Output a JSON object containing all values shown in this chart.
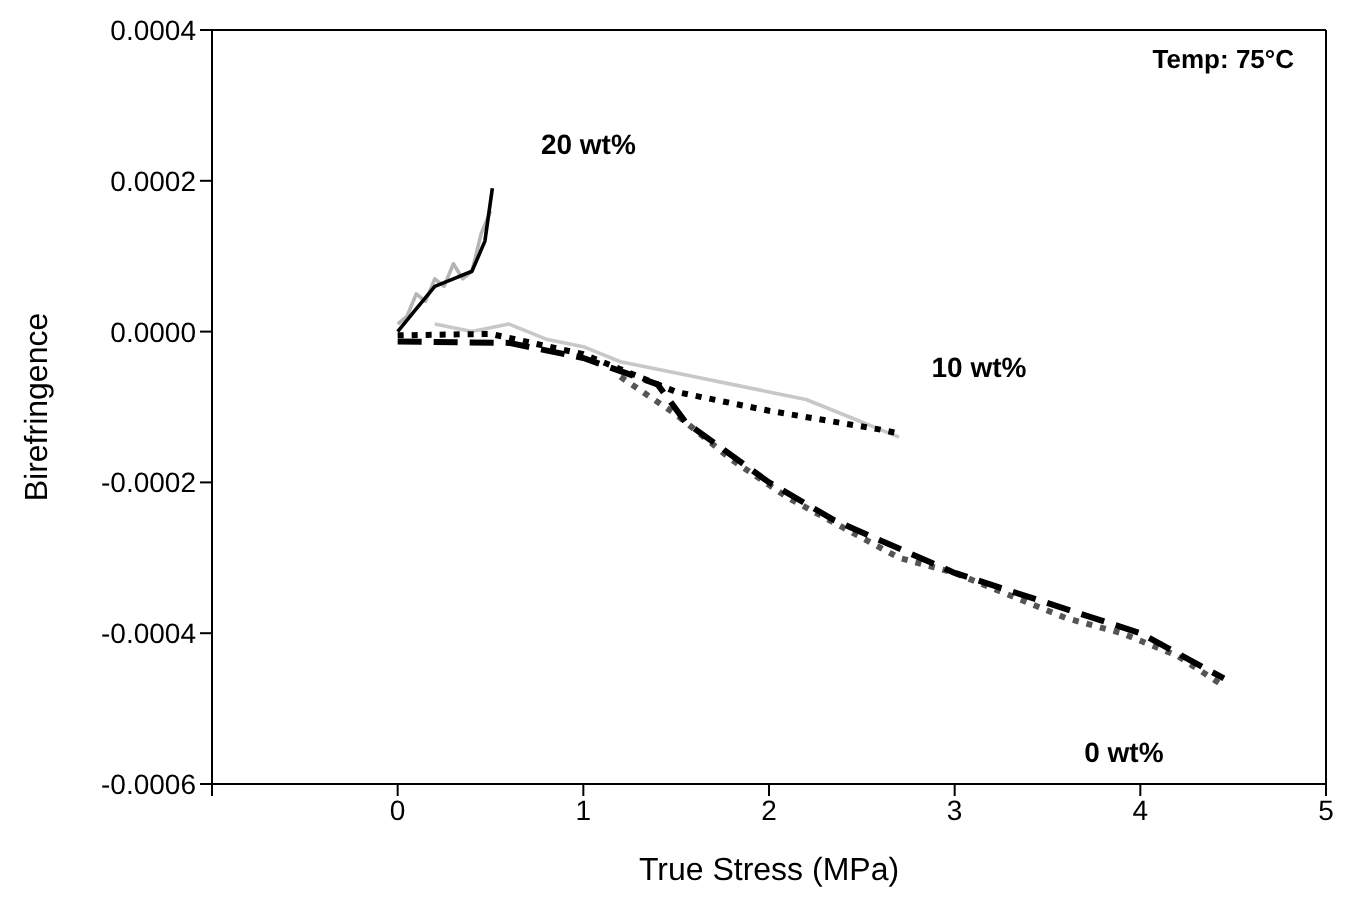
{
  "chart_data": {
    "type": "line",
    "xlabel": "True Stress (MPa)",
    "ylabel": "Birefringence",
    "annotations": [
      "Temp: 75°C"
    ],
    "xlim": [
      -1,
      5
    ],
    "xticks": [
      {
        "value": -1,
        "label": null
      },
      0,
      1,
      2,
      3,
      4,
      5
    ],
    "ylim": [
      -0.0006,
      0.0004
    ],
    "yticks": [
      {
        "value": -0.0006,
        "label": "-0.0006"
      },
      {
        "value": -0.0004,
        "label": "-0.0004"
      },
      {
        "value": -0.0002,
        "label": "-0.0002"
      },
      {
        "value": 0,
        "label": "0.0000"
      },
      {
        "value": 0.0002,
        "label": "0.0002"
      },
      {
        "value": 0.0004,
        "label": "0.0004"
      }
    ],
    "marker": "none",
    "series": [
      {
        "color": "#b5b5b5",
        "line_style": "solid",
        "x": [
          0,
          0.05,
          0.1,
          0.15,
          0.2,
          0.25,
          0.3,
          0.35,
          0.4,
          0.45,
          0.5
        ],
        "values": [
          1e-05,
          2e-05,
          5e-05,
          4e-05,
          7e-05,
          6e-05,
          9e-05,
          7e-05,
          8e-05,
          0.00013,
          0.00016
        ]
      },
      {
        "color": "#c8c8c8",
        "line_style": "solid",
        "x": [
          0.2,
          0.4,
          0.6,
          0.8,
          1,
          1.2,
          1.4,
          1.6,
          1.8,
          2,
          2.2,
          2.4,
          2.6,
          2.7
        ],
        "values": [
          1e-05,
          0,
          1e-05,
          -1e-05,
          -2e-05,
          -4e-05,
          -5e-05,
          -6e-05,
          -7e-05,
          -8e-05,
          -9e-05,
          -0.00011,
          -0.00013,
          -0.00014
        ]
      },
      {
        "color": "#555555",
        "line_style": "dotted",
        "x": [
          1.2,
          1.5,
          1.8,
          2.1,
          2.4,
          2.7,
          3,
          3.3,
          3.6,
          3.9,
          4.2,
          4.45
        ],
        "values": [
          -6e-05,
          -0.00011,
          -0.00017,
          -0.00022,
          -0.00026,
          -0.0003,
          -0.00032,
          -0.00035,
          -0.00038,
          -0.0004,
          -0.00043,
          -0.00047
        ]
      },
      {
        "name": "20 wt%",
        "color": "#000000",
        "line_style": "solid",
        "x": [
          0,
          0.1,
          0.2,
          0.3,
          0.4,
          0.47,
          0.51
        ],
        "values": [
          0,
          3e-05,
          6e-05,
          7e-05,
          8e-05,
          0.00012,
          0.00019
        ]
      },
      {
        "name": "10 wt%",
        "color": "#000000",
        "line_style": "dotted",
        "x": [
          0,
          0.5,
          1,
          1.5,
          2,
          2.6,
          2.7
        ],
        "values": [
          -5e-06,
          -3e-06,
          -3e-05,
          -8e-05,
          -0.000105,
          -0.00013,
          -0.000135
        ]
      },
      {
        "name": "0 wt%",
        "color": "#000000",
        "line_style": "dashed",
        "x": [
          0,
          0.6,
          1,
          1.4,
          1.55,
          2,
          2.35,
          3,
          4,
          4.45
        ],
        "values": [
          -1.3e-05,
          -1.5e-05,
          -3.5e-05,
          -7e-05,
          -0.00012,
          -0.0002,
          -0.00025,
          -0.00032,
          -0.0004,
          -0.00046
        ]
      }
    ]
  }
}
